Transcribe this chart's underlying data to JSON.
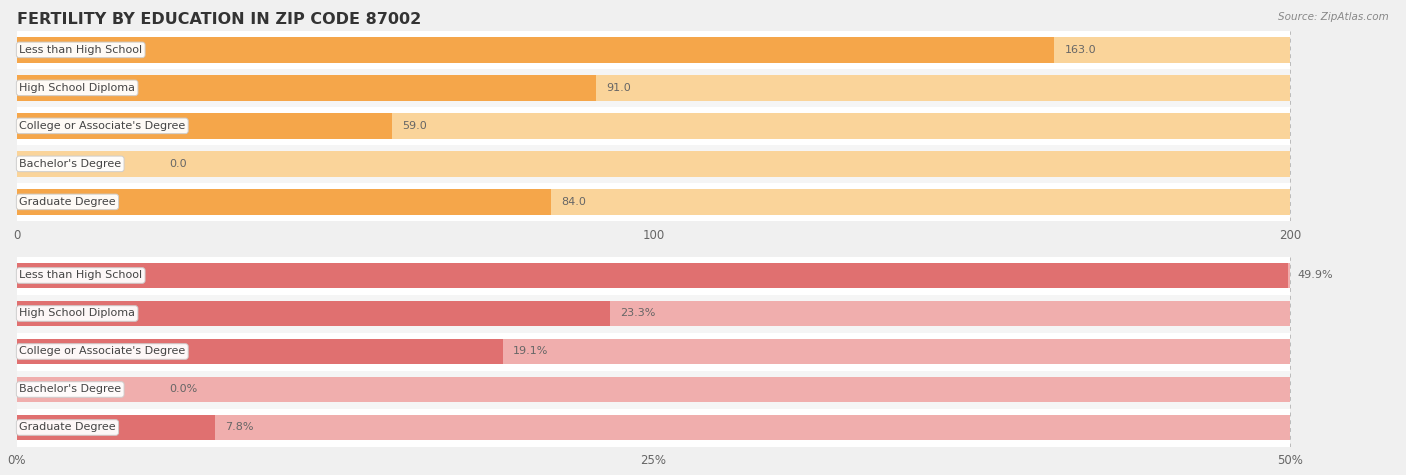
{
  "title": "FERTILITY BY EDUCATION IN ZIP CODE 87002",
  "source": "Source: ZipAtlas.com",
  "top_chart": {
    "categories": [
      "Less than High School",
      "High School Diploma",
      "College or Associate's Degree",
      "Bachelor's Degree",
      "Graduate Degree"
    ],
    "values": [
      163.0,
      91.0,
      59.0,
      0.0,
      84.0
    ],
    "bar_color": "#F5A64A",
    "bar_bg_color": "#FAD49A",
    "xlim": [
      0,
      200
    ],
    "xticks": [
      0.0,
      100.0,
      200.0
    ],
    "value_labels": [
      "163.0",
      "91.0",
      "59.0",
      "0.0",
      "84.0"
    ],
    "pct": false
  },
  "bottom_chart": {
    "categories": [
      "Less than High School",
      "High School Diploma",
      "College or Associate's Degree",
      "Bachelor's Degree",
      "Graduate Degree"
    ],
    "values": [
      49.9,
      23.3,
      19.1,
      0.0,
      7.8
    ],
    "bar_color": "#E07070",
    "bar_bg_color": "#F0AEAD",
    "xlim": [
      0,
      50
    ],
    "xticks": [
      0.0,
      25.0,
      50.0
    ],
    "value_labels": [
      "49.9%",
      "23.3%",
      "19.1%",
      "0.0%",
      "7.8%"
    ],
    "pct": true
  },
  "bg_color": "#f0f0f0",
  "bar_row_bg_odd": "#f9f9f9",
  "bar_row_bg_even": "#efefef",
  "label_font_size": 8.0,
  "value_font_size": 8.0,
  "title_font_size": 11.5,
  "source_font_size": 7.5
}
